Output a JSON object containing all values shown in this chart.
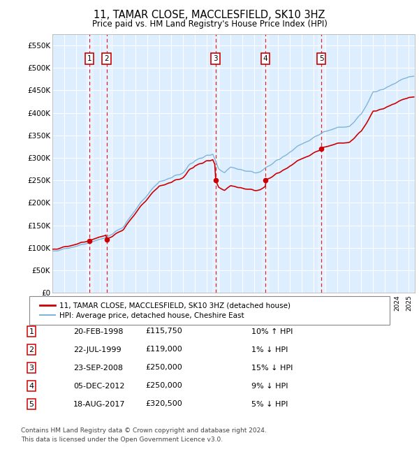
{
  "title": "11, TAMAR CLOSE, MACCLESFIELD, SK10 3HZ",
  "subtitle": "Price paid vs. HM Land Registry's House Price Index (HPI)",
  "ylim": [
    0,
    575000
  ],
  "yticks": [
    0,
    50000,
    100000,
    150000,
    200000,
    250000,
    300000,
    350000,
    400000,
    450000,
    500000,
    550000
  ],
  "ytick_labels": [
    "£0",
    "£50K",
    "£100K",
    "£150K",
    "£200K",
    "£250K",
    "£300K",
    "£350K",
    "£400K",
    "£450K",
    "£500K",
    "£550K"
  ],
  "hpi_color": "#7fb4d9",
  "price_color": "#cc0000",
  "vline_color": "#dd0000",
  "plot_bg_color": "#ddeeff",
  "grid_color": "#ffffff",
  "xmin": 1995,
  "xmax": 2025.5,
  "sale_transactions": [
    {
      "label": "1",
      "date_year": 1998.13,
      "price": 115750
    },
    {
      "label": "2",
      "date_year": 1999.56,
      "price": 119000
    },
    {
      "label": "3",
      "date_year": 2008.73,
      "price": 250000
    },
    {
      "label": "4",
      "date_year": 2012.92,
      "price": 250000
    },
    {
      "label": "5",
      "date_year": 2017.63,
      "price": 320500
    }
  ],
  "legend_line1": "11, TAMAR CLOSE, MACCLESFIELD, SK10 3HZ (detached house)",
  "legend_line2": "HPI: Average price, detached house, Cheshire East",
  "legend_color1": "#cc0000",
  "legend_color2": "#7fb4d9",
  "table_rows": [
    {
      "num": "1",
      "date": "20-FEB-1998",
      "price": "£115,750",
      "hpi": "10% ↑ HPI"
    },
    {
      "num": "2",
      "date": "22-JUL-1999",
      "price": "£119,000",
      "hpi": "1% ↓ HPI"
    },
    {
      "num": "3",
      "date": "23-SEP-2008",
      "price": "£250,000",
      "hpi": "15% ↓ HPI"
    },
    {
      "num": "4",
      "date": "05-DEC-2012",
      "price": "£250,000",
      "hpi": "9% ↓ HPI"
    },
    {
      "num": "5",
      "date": "18-AUG-2017",
      "price": "£320,500",
      "hpi": "5% ↓ HPI"
    }
  ],
  "footnote1": "Contains HM Land Registry data © Crown copyright and database right 2024.",
  "footnote2": "This data is licensed under the Open Government Licence v3.0."
}
